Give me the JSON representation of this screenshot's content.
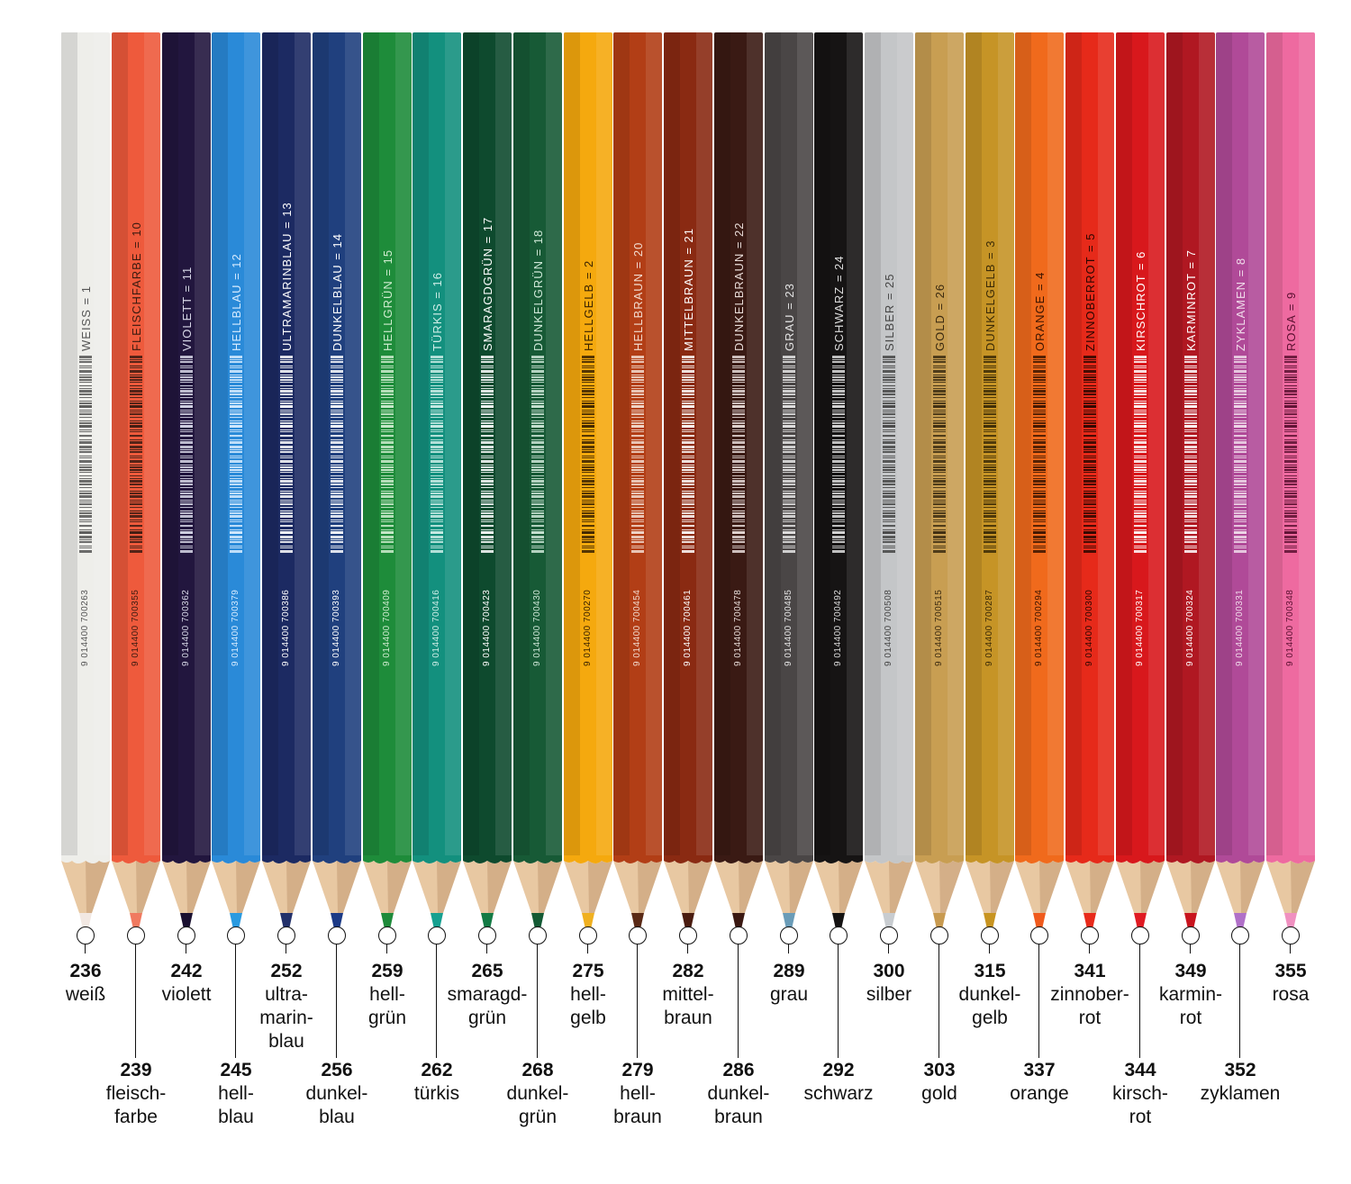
{
  "pencils": [
    {
      "number": "236",
      "name": "weiß",
      "imprint": "WEISS = 1",
      "ean": "9 014400 700263",
      "body": "#eeeeea",
      "text": "#555555",
      "lead": "#f2e8e2"
    },
    {
      "number": "239",
      "name": "fleisch-\nfarbe",
      "imprint": "FLEISCHFARBE = 10",
      "ean": "9 014400 700355",
      "body": "#ee5a3c",
      "text": "#3a1a10",
      "lead": "#f07a60"
    },
    {
      "number": "242",
      "name": "violett",
      "imprint": "VIOLETT = 11",
      "ean": "9 014400 700362",
      "body": "#22163e",
      "text": "#d8d8e8",
      "lead": "#1a1030"
    },
    {
      "number": "245",
      "name": "hell-\nblau",
      "imprint": "HELLBLAU = 12",
      "ean": "9 014400 700379",
      "body": "#2a8ad8",
      "text": "#d8ecff",
      "lead": "#2a9ae0"
    },
    {
      "number": "252",
      "name": "ultra-\nmarin-\nblau",
      "imprint": "ULTRAMARINBLAU = 13",
      "ean": "9 014400 700386",
      "body": "#1c2a62",
      "text": "#ffffff",
      "lead": "#22306a"
    },
    {
      "number": "256",
      "name": "dunkel-\nblau",
      "imprint": "DUNKELBLAU = 14",
      "ean": "9 014400 700393",
      "body": "#20407e",
      "text": "#ffffff",
      "lead": "#1c3a86"
    },
    {
      "number": "259",
      "name": "hell-\ngrün",
      "imprint": "HELLGRÜN = 15",
      "ean": "9 014400 700409",
      "body": "#1e8c3a",
      "text": "#cfeccf",
      "lead": "#1e8a3a"
    },
    {
      "number": "262",
      "name": "türkis",
      "imprint": "TÜRKIS = 16",
      "ean": "9 014400 700416",
      "body": "#13907e",
      "text": "#cfeee8",
      "lead": "#16a090"
    },
    {
      "number": "265",
      "name": "smaragd-\ngrün",
      "imprint": "SMARAGDGRÜN = 17",
      "ean": "9 014400 700423",
      "body": "#0e4a2e",
      "text": "#ffffff",
      "lead": "#137a44"
    },
    {
      "number": "268",
      "name": "dunkel-\ngrün",
      "imprint": "DUNKELGRÜN = 18",
      "ean": "9 014400 700430",
      "body": "#175a36",
      "text": "#cfe8d8",
      "lead": "#145a34"
    },
    {
      "number": "275",
      "name": "hell-\ngelb",
      "imprint": "HELLGELB = 2",
      "ean": "9 014400 700270",
      "body": "#f5a90e",
      "text": "#3a2200",
      "lead": "#f0b020"
    },
    {
      "number": "279",
      "name": "hell-\nbraun",
      "imprint": "HELLBRAUN = 20",
      "ean": "9 014400 700454",
      "body": "#b23e16",
      "text": "#f2dcd0",
      "lead": "#5a2a16"
    },
    {
      "number": "282",
      "name": "mittel-\nbraun",
      "imprint": "MITTELBRAUN = 21",
      "ean": "9 014400 700461",
      "body": "#8a2a12",
      "text": "#ffffff",
      "lead": "#4a1c10"
    },
    {
      "number": "286",
      "name": "dunkel-\nbraun",
      "imprint": "DUNKELBRAUN = 22",
      "ean": "9 014400 700478",
      "body": "#3a1a14",
      "text": "#e8dcd8",
      "lead": "#3a1812"
    },
    {
      "number": "289",
      "name": "grau",
      "imprint": "GRAU = 23",
      "ean": "9 014400 700485",
      "body": "#4a4646",
      "text": "#e6e6e6",
      "lead": "#6a9cb8"
    },
    {
      "number": "292",
      "name": "schwarz",
      "imprint": "SCHWARZ = 24",
      "ean": "9 014400 700492",
      "body": "#161414",
      "text": "#dddddd",
      "lead": "#141212"
    },
    {
      "number": "300",
      "name": "silber",
      "imprint": "SILBER = 25",
      "ean": "9 014400 700508",
      "body": "#c4c6c8",
      "text": "#444444",
      "lead": "#c8ccd0"
    },
    {
      "number": "303",
      "name": "gold",
      "imprint": "GOLD = 26",
      "ean": "9 014400 700515",
      "body": "#c89e52",
      "text": "#3a2a10",
      "lead": "#c89a50"
    },
    {
      "number": "315",
      "name": "dunkel-\ngelb",
      "imprint": "DUNKELGELB = 3",
      "ean": "9 014400 700287",
      "body": "#c69426",
      "text": "#3a2a06",
      "lead": "#c89420"
    },
    {
      "number": "337",
      "name": "orange",
      "imprint": "ORANGE = 4",
      "ean": "9 014400 700294",
      "body": "#f06a1c",
      "text": "#3a1400",
      "lead": "#f05a1c"
    },
    {
      "number": "341",
      "name": "zinnober-\nrot",
      "imprint": "ZINNOBERROT = 5",
      "ean": "9 014400 700300",
      "body": "#e62a1a",
      "text": "#2a0600",
      "lead": "#e82a1a"
    },
    {
      "number": "344",
      "name": "kirsch-\nrot",
      "imprint": "KIRSCHROT = 6",
      "ean": "9 014400 700317",
      "body": "#d8181c",
      "text": "#ffffff",
      "lead": "#e01a22"
    },
    {
      "number": "349",
      "name": "karmin-\nrot",
      "imprint": "KARMINROT = 7",
      "ean": "9 014400 700324",
      "body": "#b01822",
      "text": "#ffffff",
      "lead": "#c8141e"
    },
    {
      "number": "352",
      "name": "zyklamen",
      "imprint": "ZYKLAMEN = 8",
      "ean": "9 014400 700331",
      "body": "#b04a98",
      "text": "#f0dcea",
      "lead": "#b070c8"
    },
    {
      "number": "355",
      "name": "rosa",
      "imprint": "ROSA = 9",
      "ean": "9 014400 700348",
      "body": "#ee6aa0",
      "text": "#5a1030",
      "lead": "#f090c0"
    }
  ]
}
